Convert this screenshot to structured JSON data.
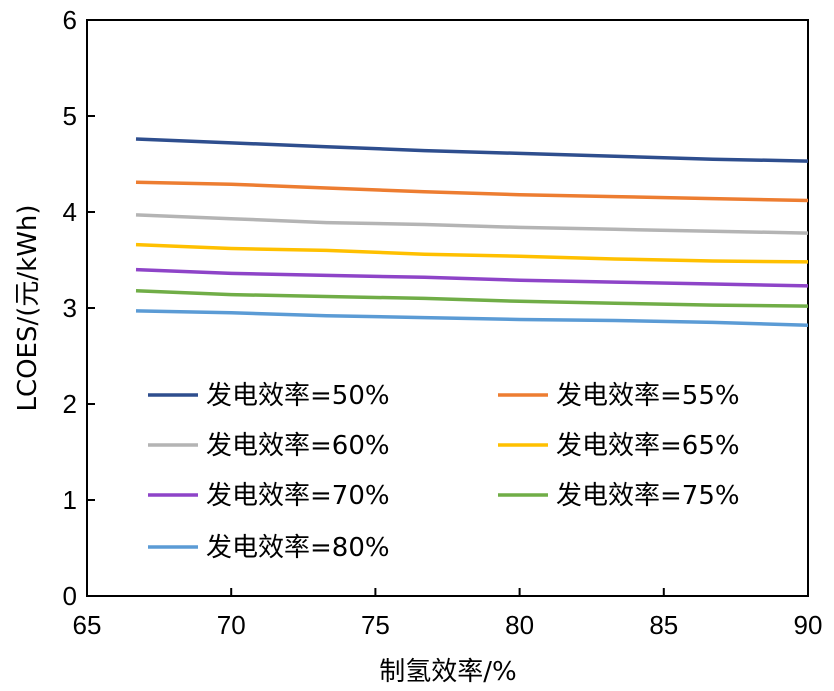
{
  "chart_data": {
    "type": "line",
    "title": "",
    "xlabel": "制氢效率/%",
    "ylabel": "LCOES/(元/kWh)",
    "xlim": [
      65,
      90
    ],
    "ylim": [
      0,
      6
    ],
    "xticks": [
      65,
      70,
      75,
      80,
      85,
      90
    ],
    "yticks": [
      0,
      1,
      2,
      3,
      4,
      5,
      6
    ],
    "grid": false,
    "legend_position": "bottom-left",
    "x": [
      66.7,
      70,
      73.3,
      76.7,
      80,
      83.3,
      86.7,
      90
    ],
    "series": [
      {
        "name": "发电效率=50%",
        "color": "#2E4E8E",
        "values": [
          4.76,
          4.72,
          4.68,
          4.64,
          4.61,
          4.58,
          4.55,
          4.53
        ]
      },
      {
        "name": "发电效率=55%",
        "color": "#ED7D31",
        "values": [
          4.31,
          4.29,
          4.25,
          4.21,
          4.18,
          4.16,
          4.14,
          4.12
        ]
      },
      {
        "name": "发电效率=60%",
        "color": "#B4B4B4",
        "values": [
          3.97,
          3.93,
          3.89,
          3.87,
          3.84,
          3.82,
          3.8,
          3.78
        ]
      },
      {
        "name": "发电效率=65%",
        "color": "#FFC000",
        "values": [
          3.66,
          3.62,
          3.6,
          3.56,
          3.54,
          3.51,
          3.49,
          3.48
        ]
      },
      {
        "name": "发电效率=70%",
        "color": "#8E44C8",
        "values": [
          3.4,
          3.36,
          3.34,
          3.32,
          3.29,
          3.27,
          3.25,
          3.23
        ]
      },
      {
        "name": "发电效率=75%",
        "color": "#70AD47",
        "values": [
          3.18,
          3.14,
          3.12,
          3.1,
          3.07,
          3.05,
          3.03,
          3.02
        ]
      },
      {
        "name": "发电效率=80%",
        "color": "#5B9BD5",
        "values": [
          2.97,
          2.95,
          2.92,
          2.9,
          2.88,
          2.87,
          2.85,
          2.82
        ]
      }
    ]
  }
}
